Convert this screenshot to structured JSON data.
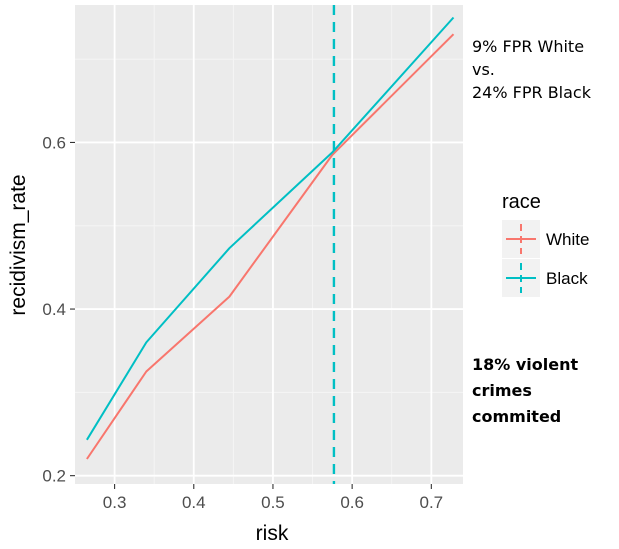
{
  "chart_data": {
    "type": "line",
    "xlabel": "risk",
    "ylabel": "recidivism_rate",
    "xlim": [
      0.25,
      0.74
    ],
    "ylim": [
      0.19,
      0.765
    ],
    "x_ticks": [
      0.3,
      0.4,
      0.5,
      0.6,
      0.7
    ],
    "x_tick_labels": [
      "0.3",
      "0.4",
      "0.5",
      "0.6",
      "0.7"
    ],
    "y_ticks": [
      0.2,
      0.4,
      0.6
    ],
    "y_tick_labels": [
      "0.2",
      "0.4",
      "0.6"
    ],
    "grid": true,
    "legend": {
      "title": "race",
      "position": "right"
    },
    "series": [
      {
        "name": "White",
        "color": "#F8766D",
        "style": "solid",
        "x": [
          0.265,
          0.34,
          0.445,
          0.575,
          0.728
        ],
        "y": [
          0.22,
          0.325,
          0.415,
          0.585,
          0.73
        ]
      },
      {
        "name": "Black",
        "color": "#00BFC4",
        "style": "solid",
        "x": [
          0.265,
          0.34,
          0.445,
          0.575,
          0.728
        ],
        "y": [
          0.243,
          0.36,
          0.473,
          0.588,
          0.75
        ]
      }
    ],
    "vlines": [
      {
        "x": 0.577,
        "color": "#00BFC4",
        "style": "dashed"
      }
    ]
  },
  "annotations": {
    "fpr_line1": "9% FPR White",
    "fpr_line2": "vs.",
    "fpr_line3": "24% FPR Black",
    "violent_line1": "18% violent",
    "violent_line2": "crimes",
    "violent_line3": "commited"
  }
}
